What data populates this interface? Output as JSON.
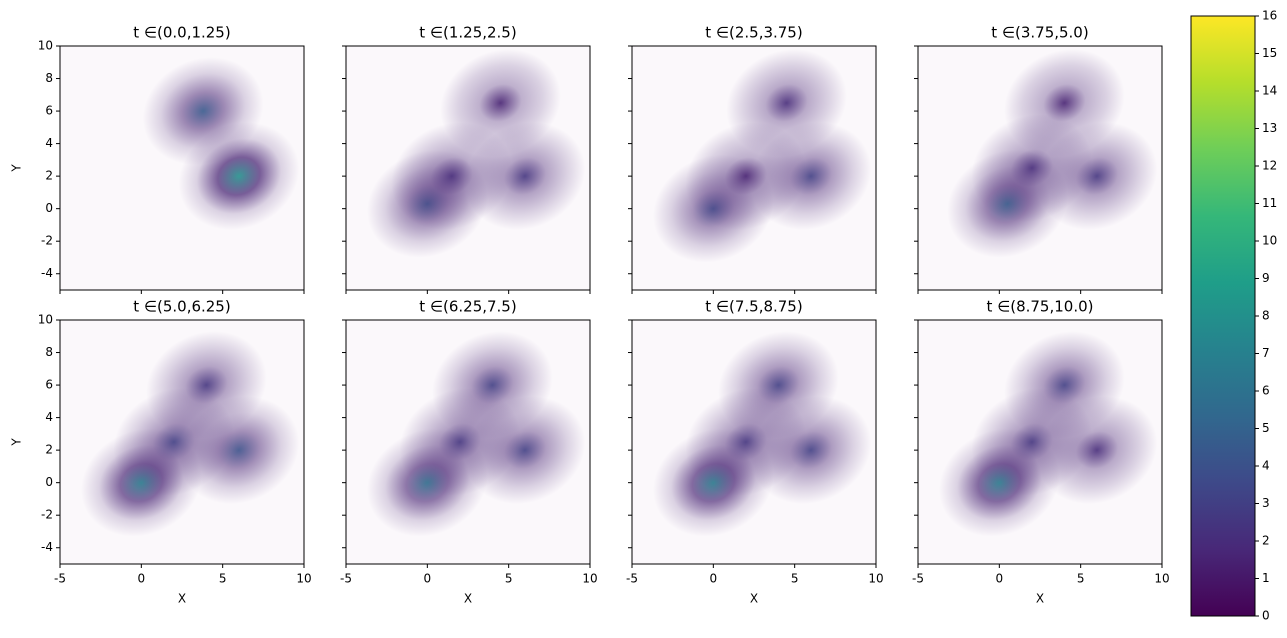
{
  "chart_data": [
    {
      "type": "heatmap",
      "title": "t  ∈(0.0,1.25)",
      "ylabel": "Y",
      "xlim": [
        -5,
        10
      ],
      "ylim": [
        -5,
        10
      ],
      "xticks": [
        -5,
        0,
        5,
        10
      ],
      "yticks": [
        -4,
        -2,
        0,
        2,
        4,
        6,
        8,
        10
      ],
      "x": [
        3.8,
        6
      ],
      "y": [
        6,
        2
      ],
      "values": [
        4.5,
        8
      ]
    },
    {
      "type": "heatmap",
      "title": "t  ∈(1.25,2.5)",
      "xlim": [
        -5,
        10
      ],
      "ylim": [
        -5,
        10
      ],
      "xticks": [
        -5,
        0,
        5,
        10
      ],
      "yticks": [
        -4,
        -2,
        0,
        2,
        4,
        6,
        8,
        10
      ],
      "x": [
        4.5,
        6,
        0,
        1.5
      ],
      "y": [
        6.5,
        2,
        0.3,
        2
      ],
      "values": [
        1.5,
        2.5,
        4,
        2
      ]
    },
    {
      "type": "heatmap",
      "title": "t  ∈(2.5,3.75)",
      "xlim": [
        -5,
        10
      ],
      "ylim": [
        -5,
        10
      ],
      "xticks": [
        -5,
        0,
        5,
        10
      ],
      "yticks": [
        -4,
        -2,
        0,
        2,
        4,
        6,
        8,
        10
      ],
      "x": [
        4.5,
        6,
        0,
        2
      ],
      "y": [
        6.5,
        2,
        0,
        2
      ],
      "values": [
        2,
        3,
        3.5,
        1.5
      ]
    },
    {
      "type": "heatmap",
      "title": "t  ∈(3.75,5.0)",
      "xlim": [
        -5,
        10
      ],
      "ylim": [
        -5,
        10
      ],
      "xticks": [
        -5,
        0,
        5,
        10
      ],
      "yticks": [
        -4,
        -2,
        0,
        2,
        4,
        6,
        8,
        10
      ],
      "x": [
        4,
        6,
        0.5,
        2
      ],
      "y": [
        6.5,
        2,
        0.3,
        2.5
      ],
      "values": [
        1.5,
        2.5,
        5,
        2
      ]
    },
    {
      "type": "heatmap",
      "title": "t  ∈(5.0,6.25)",
      "xlabel": "X",
      "ylabel": "Y",
      "xlim": [
        -5,
        10
      ],
      "ylim": [
        -5,
        10
      ],
      "xticks": [
        -5,
        0,
        5,
        10
      ],
      "yticks": [
        -4,
        -2,
        0,
        2,
        4,
        6,
        8,
        10
      ],
      "x": [
        4,
        6,
        0,
        2
      ],
      "y": [
        6,
        2,
        0,
        2.5
      ],
      "values": [
        2.5,
        4,
        7,
        3
      ]
    },
    {
      "type": "heatmap",
      "title": "t  ∈(6.25,7.5)",
      "xlabel": "X",
      "xlim": [
        -5,
        10
      ],
      "ylim": [
        -5,
        10
      ],
      "xticks": [
        -5,
        0,
        5,
        10
      ],
      "yticks": [
        -4,
        -2,
        0,
        2,
        4,
        6,
        8,
        10
      ],
      "x": [
        4,
        6,
        0,
        2
      ],
      "y": [
        6,
        2,
        0,
        2.5
      ],
      "values": [
        3,
        3,
        6,
        2.5
      ]
    },
    {
      "type": "heatmap",
      "title": "t  ∈(7.5,8.75)",
      "xlabel": "X",
      "xlim": [
        -5,
        10
      ],
      "ylim": [
        -5,
        10
      ],
      "xticks": [
        -5,
        0,
        5,
        10
      ],
      "yticks": [
        -4,
        -2,
        0,
        2,
        4,
        6,
        8,
        10
      ],
      "x": [
        4,
        6,
        0,
        2
      ],
      "y": [
        6,
        2,
        0,
        2.5
      ],
      "values": [
        3,
        3,
        7,
        2.5
      ]
    },
    {
      "type": "heatmap",
      "title": "t  ∈(8.75,10.0)",
      "xlabel": "X",
      "xlim": [
        -5,
        10
      ],
      "ylim": [
        -5,
        10
      ],
      "xticks": [
        -5,
        0,
        5,
        10
      ],
      "yticks": [
        -4,
        -2,
        0,
        2,
        4,
        6,
        8,
        10
      ],
      "x": [
        4,
        6,
        0,
        2
      ],
      "y": [
        6,
        2,
        0,
        2.5
      ],
      "values": [
        3,
        2,
        7,
        2.5
      ]
    },
    {
      "type": "colorbar",
      "colormap": "viridis",
      "ylim": [
        0,
        16
      ],
      "yticks": [
        0,
        1,
        2,
        3,
        4,
        5,
        6,
        7,
        8,
        9,
        10,
        11,
        12,
        13,
        14,
        15,
        16
      ]
    }
  ]
}
